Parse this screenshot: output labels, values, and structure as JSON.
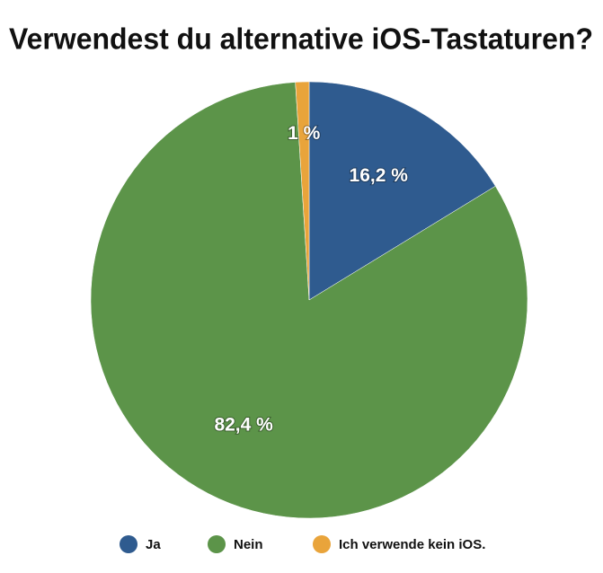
{
  "chart_data": {
    "type": "pie",
    "title": "Verwendest du alternative iOS-Tastaturen?",
    "categories": [
      "Ja",
      "Nein",
      "Ich verwende kein iOS."
    ],
    "values": [
      16.2,
      82.4,
      1
    ],
    "value_labels": [
      "16,2 %",
      "82,4 %",
      "1 %"
    ],
    "colors": [
      "#2f5b8f",
      "#5c9449",
      "#e9a43b"
    ],
    "legend": "bottom"
  }
}
